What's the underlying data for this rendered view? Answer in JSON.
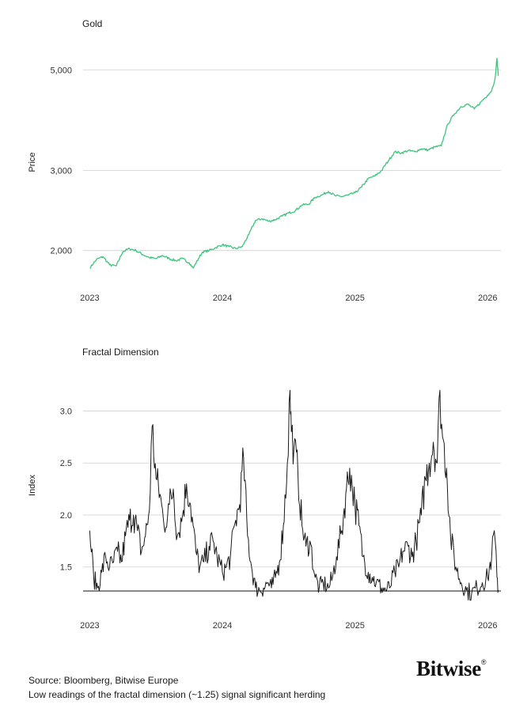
{
  "chart_data": [
    {
      "type": "line",
      "title": "Gold",
      "xlabel": "",
      "ylabel": "Price",
      "y_scale": "log",
      "xlim": [
        2022.95,
        2026.1
      ],
      "ylim": [
        1750,
        5600
      ],
      "color": "#3cc47c",
      "x_ticks": [
        2023,
        2024,
        2025,
        2026
      ],
      "x_tick_labels": [
        "2023",
        "2024",
        "2025",
        "2026"
      ],
      "y_ticks": [
        2000,
        3000,
        5000
      ],
      "y_tick_labels": [
        "2,000",
        "3,000",
        "5,000"
      ],
      "series": [
        {
          "name": "Gold",
          "x": [
            2023.0,
            2023.05,
            2023.1,
            2023.15,
            2023.2,
            2023.25,
            2023.3,
            2023.35,
            2023.4,
            2023.45,
            2023.5,
            2023.55,
            2023.6,
            2023.65,
            2023.7,
            2023.75,
            2023.78,
            2023.82,
            2023.85,
            2023.9,
            2023.95,
            2024.0,
            2024.05,
            2024.1,
            2024.15,
            2024.2,
            2024.25,
            2024.3,
            2024.35,
            2024.4,
            2024.45,
            2024.5,
            2024.55,
            2024.6,
            2024.65,
            2024.7,
            2024.75,
            2024.8,
            2024.85,
            2024.9,
            2024.95,
            2025.0,
            2025.05,
            2025.1,
            2025.15,
            2025.2,
            2025.25,
            2025.3,
            2025.35,
            2025.4,
            2025.45,
            2025.5,
            2025.55,
            2025.6,
            2025.65,
            2025.7,
            2025.75,
            2025.8,
            2025.85,
            2025.9,
            2025.95,
            2026.0,
            2026.03,
            2026.05,
            2026.06,
            2026.07,
            2026.08
          ],
          "values": [
            1830,
            1910,
            1940,
            1860,
            1850,
            1990,
            2020,
            2000,
            1960,
            1930,
            1920,
            1950,
            1920,
            1900,
            1920,
            1880,
            1830,
            1920,
            1985,
            2000,
            2030,
            2060,
            2040,
            2020,
            2040,
            2170,
            2330,
            2350,
            2320,
            2340,
            2380,
            2420,
            2450,
            2520,
            2530,
            2620,
            2650,
            2700,
            2640,
            2630,
            2650,
            2680,
            2760,
            2880,
            2920,
            3000,
            3150,
            3300,
            3280,
            3320,
            3300,
            3350,
            3330,
            3380,
            3400,
            3800,
            4000,
            4150,
            4200,
            4100,
            4250,
            4400,
            4500,
            4700,
            4900,
            5300,
            4850
          ]
        }
      ]
    },
    {
      "type": "line",
      "title": "Fractal Dimension",
      "xlabel": "",
      "ylabel": "Index",
      "xlim": [
        2022.95,
        2026.1
      ],
      "ylim": [
        1.27,
        3.3
      ],
      "color": "#1a1a1a",
      "x_ticks": [
        2023,
        2024,
        2025,
        2026
      ],
      "x_tick_labels": [
        "2023",
        "2024",
        "2025",
        "2026"
      ],
      "y_ticks": [
        1.5,
        2.0,
        2.5,
        3.0
      ],
      "y_tick_labels": [
        "1.5",
        "2.0",
        "2.5",
        "3.0"
      ],
      "reference_line": 1.25,
      "series": [
        {
          "name": "Fractal Dimension",
          "x": [
            2023.0,
            2023.03,
            2023.06,
            2023.09,
            2023.12,
            2023.15,
            2023.18,
            2023.21,
            2023.24,
            2023.27,
            2023.3,
            2023.33,
            2023.36,
            2023.39,
            2023.42,
            2023.45,
            2023.47,
            2023.5,
            2023.53,
            2023.56,
            2023.6,
            2023.63,
            2023.66,
            2023.7,
            2023.73,
            2023.76,
            2023.8,
            2023.83,
            2023.86,
            2023.9,
            2023.93,
            2023.96,
            2024.0,
            2024.03,
            2024.06,
            2024.1,
            2024.13,
            2024.16,
            2024.19,
            2024.22,
            2024.25,
            2024.28,
            2024.31,
            2024.34,
            2024.37,
            2024.4,
            2024.43,
            2024.46,
            2024.49,
            2024.51,
            2024.52,
            2024.54,
            2024.57,
            2024.6,
            2024.63,
            2024.66,
            2024.7,
            2024.73,
            2024.76,
            2024.8,
            2024.83,
            2024.86,
            2024.9,
            2024.93,
            2024.96,
            2025.0,
            2025.03,
            2025.06,
            2025.1,
            2025.13,
            2025.16,
            2025.2,
            2025.23,
            2025.26,
            2025.3,
            2025.33,
            2025.36,
            2025.4,
            2025.43,
            2025.46,
            2025.5,
            2025.53,
            2025.56,
            2025.59,
            2025.62,
            2025.64,
            2025.66,
            2025.69,
            2025.72,
            2025.76,
            2025.8,
            2025.84,
            2025.88,
            2025.92,
            2025.96,
            2026.0,
            2026.03,
            2026.05,
            2026.07,
            2026.08
          ],
          "values": [
            1.85,
            1.4,
            1.3,
            1.45,
            1.6,
            1.5,
            1.55,
            1.65,
            1.55,
            1.8,
            1.95,
            2.0,
            1.85,
            1.65,
            1.8,
            2.05,
            2.85,
            2.35,
            2.2,
            1.9,
            2.1,
            2.25,
            1.8,
            2.0,
            2.3,
            2.1,
            1.65,
            1.5,
            1.55,
            1.7,
            1.75,
            1.6,
            1.45,
            1.5,
            1.6,
            1.95,
            2.1,
            2.55,
            1.8,
            1.5,
            1.3,
            1.28,
            1.3,
            1.35,
            1.3,
            1.4,
            1.55,
            1.9,
            2.5,
            3.2,
            2.8,
            2.65,
            2.4,
            1.9,
            1.7,
            1.75,
            1.4,
            1.3,
            1.35,
            1.3,
            1.4,
            1.6,
            1.85,
            2.2,
            2.45,
            2.1,
            1.9,
            1.6,
            1.45,
            1.4,
            1.35,
            1.3,
            1.28,
            1.3,
            1.45,
            1.5,
            1.65,
            1.7,
            1.6,
            1.75,
            2.0,
            2.35,
            2.5,
            2.7,
            2.5,
            3.2,
            2.75,
            2.45,
            1.8,
            1.5,
            1.35,
            1.28,
            1.25,
            1.3,
            1.35,
            1.4,
            1.6,
            1.85,
            1.4,
            1.28
          ]
        }
      ]
    }
  ],
  "footer": {
    "source": "Source: Bloomberg, Bitwise Europe",
    "note": "Low readings of the fractal dimension (~1.25) signal significant herding"
  },
  "brand": {
    "name": "Bitwise",
    "mark": "®"
  }
}
